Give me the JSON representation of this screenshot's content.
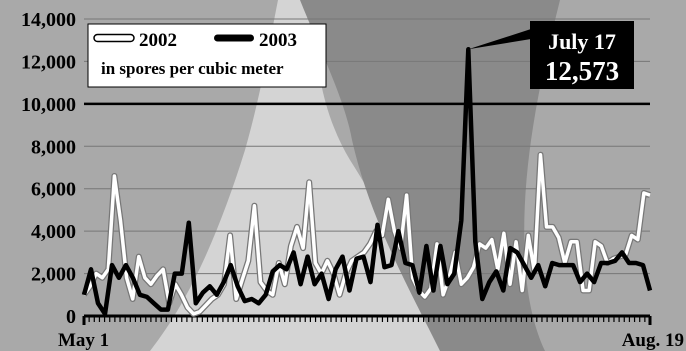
{
  "chart_data": {
    "type": "line",
    "ylim": [
      0,
      14000
    ],
    "y_ticks": [
      "0",
      "2,000",
      "4,000",
      "6,000",
      "8,000",
      "10,000",
      "12,000",
      "14,000"
    ],
    "x_start_label": "May 1",
    "x_end_label": "Aug. 19",
    "x_range_days": [
      "May 1",
      "Aug. 19"
    ],
    "grid": true,
    "reference_line": 10000,
    "legend": {
      "position": "top-left",
      "subtitle": "in spores per cubic meter"
    },
    "annotation": {
      "date_label": "July 17",
      "value_label": "12,573",
      "value": 12573
    },
    "series": [
      {
        "name": "2002",
        "color": "#ffffff",
        "values": [
          1000,
          1400,
          2000,
          1800,
          2200,
          6600,
          4500,
          1800,
          800,
          2800,
          1800,
          1500,
          1900,
          2200,
          600,
          1500,
          1000,
          400,
          100,
          200,
          500,
          800,
          1000,
          1500,
          3800,
          800,
          1700,
          2600,
          5200,
          1600,
          1200,
          1000,
          2500,
          1500,
          3300,
          4200,
          3200,
          6300,
          2500,
          2000,
          2600,
          2000,
          1000,
          2000,
          2600,
          2800,
          3000,
          3400,
          4000,
          3800,
          5500,
          4000,
          3200,
          5700,
          1800,
          1200,
          900,
          1300,
          3400,
          1000,
          1800,
          3000,
          1500,
          1800,
          2300,
          3400,
          3200,
          3600,
          2200,
          3900,
          1500,
          3500,
          1200,
          3800,
          2100,
          7600,
          4200,
          4200,
          3700,
          2500,
          3500,
          3500,
          1200,
          1200,
          3500,
          3300,
          2500,
          2700,
          2800,
          2900,
          3800,
          3600,
          5800,
          5700
        ]
      },
      {
        "name": "2003",
        "color": "#000000",
        "values": [
          1000,
          2200,
          600,
          100,
          2400,
          1800,
          2400,
          1800,
          1000,
          900,
          600,
          300,
          300,
          2000,
          2000,
          4400,
          600,
          1100,
          1400,
          1000,
          1600,
          2400,
          1400,
          700,
          800,
          600,
          1000,
          2100,
          2400,
          2200,
          3000,
          1500,
          2800,
          1500,
          2000,
          800,
          2200,
          2800,
          1200,
          2700,
          2800,
          1600,
          4300,
          2300,
          2400,
          4000,
          2500,
          2400,
          1100,
          3300,
          1200,
          3300,
          1500,
          2000,
          4500,
          12573,
          3500,
          800,
          1600,
          2100,
          1200,
          3200,
          3000,
          2400,
          1800,
          2400,
          1400,
          2500,
          2400,
          2400,
          2400,
          1600,
          2000,
          1600,
          2500,
          2500,
          2600,
          3000,
          2500,
          2500,
          2400,
          1200
        ]
      }
    ]
  }
}
